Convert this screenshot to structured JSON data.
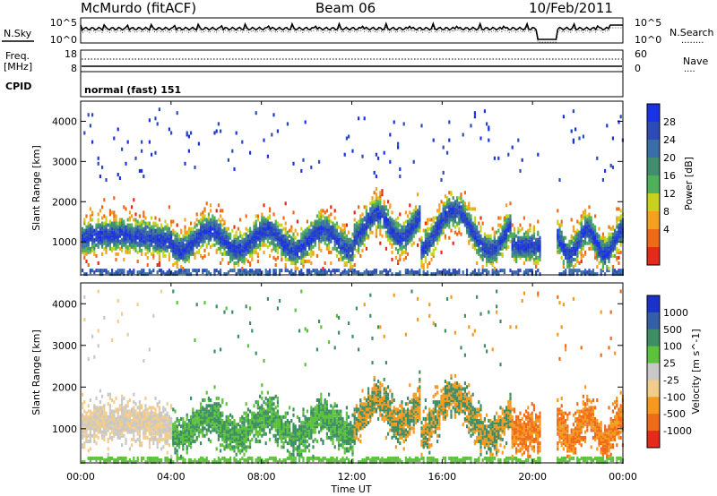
{
  "header": {
    "station": "McMurdo (fitACF)",
    "beam": "Beam 06",
    "date": "10/Feb/2011"
  },
  "noise_panel": {
    "left_label": "N.Sky",
    "left_ticks": [
      "10^5",
      "10^0"
    ],
    "right_ticks": [
      "10^5",
      "10^0"
    ],
    "right_label": "N.Search",
    "right_legend": "........"
  },
  "freq_panel": {
    "left_label_1": "Freq.",
    "left_label_2": "[MHz]",
    "left_ticks": [
      "18",
      "8"
    ],
    "right_ticks": [
      "60",
      "0"
    ],
    "right_label": "Nave",
    "right_legend": "...."
  },
  "cpid_panel": {
    "left_label": "CPID",
    "mode": "normal (fast) 151"
  },
  "time_axis": {
    "label": "Time UT",
    "ticks": [
      "00:00",
      "04:00",
      "08:00",
      "12:00",
      "16:00",
      "20:00",
      "00:00"
    ]
  },
  "colors": {
    "power_scale": [
      "#1a32e6",
      "#2c4bb5",
      "#3a6ea8",
      "#3f8e70",
      "#4eb05a",
      "#c8d21e",
      "#f5a01e",
      "#ee6a1a",
      "#e62a1a"
    ],
    "velocity_scale": [
      "#1a32c8",
      "#355ea8",
      "#3d8e64",
      "#5cc23c",
      "#c8c8c8",
      "#f2cc8a",
      "#f59a1e",
      "#ef6a1a",
      "#e62a1a"
    ]
  },
  "chart_data": [
    {
      "type": "heatmap",
      "title": "",
      "xlabel": "",
      "ylabel": "Slant Range [km]",
      "xlim": [
        "00:00",
        "24:00"
      ],
      "ylim": [
        180,
        4500
      ],
      "y_ticks": [
        1000,
        2000,
        3000,
        4000
      ],
      "colorbar": {
        "label": "Power [dB]",
        "tick_labels": [
          "28",
          "24",
          "20",
          "16",
          "12",
          "8",
          "4"
        ],
        "range": [
          0,
          30
        ]
      },
      "features": [
        {
          "time": "00:00-04:00",
          "range_km": [
            900,
            1250
          ],
          "value": "8-24 dB"
        },
        {
          "time": "04:00-14:00",
          "range_km": [
            800,
            1800
          ],
          "value": "8-28 dB"
        },
        {
          "time": "14:00-19:00",
          "range_km": [
            300,
            2200
          ],
          "value": "4-24 dB"
        },
        {
          "time": "21:00-24:00",
          "range_km": [
            400,
            1800
          ],
          "value": "8-24 dB"
        }
      ]
    },
    {
      "type": "heatmap",
      "title": "",
      "xlabel": "Time UT",
      "ylabel": "Slant Range [km]",
      "xlim": [
        "00:00",
        "24:00"
      ],
      "ylim": [
        180,
        4500
      ],
      "y_ticks": [
        1000,
        2000,
        3000,
        4000
      ],
      "colorbar": {
        "label": "Velocity [m s^-1]",
        "tick_labels": [
          "1000",
          "500",
          "100",
          "25",
          "-25",
          "-100",
          "-500",
          "-1000"
        ],
        "range": [
          -1000,
          1000
        ]
      },
      "features": [
        {
          "time": "00:00-04:00",
          "range_km": [
            900,
            1250
          ],
          "value": "-25 to 25 m/s"
        },
        {
          "time": "04:00-12:00",
          "range_km": [
            800,
            1800
          ],
          "value": "100 to 500 m/s"
        },
        {
          "time": "12:00-19:00",
          "range_km": [
            300,
            2200
          ],
          "value": "-500 to 500 m/s"
        },
        {
          "time": "21:00-24:00",
          "range_km": [
            400,
            1800
          ],
          "value": "-500 to -100 m/s"
        }
      ]
    }
  ]
}
